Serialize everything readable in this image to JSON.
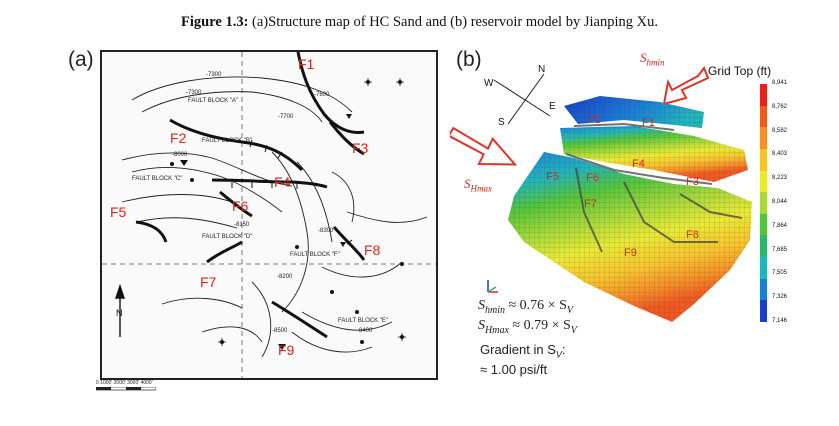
{
  "caption": {
    "bold": "Figure 1.3:",
    "text": " (a)Structure map of HC Sand and (b) reservoir model by Jianping Xu."
  },
  "panel_a": {
    "label": "(a)",
    "faults": [
      "F1",
      "F2",
      "F3",
      "F4",
      "F5",
      "F6",
      "F7",
      "F8",
      "F9"
    ],
    "contours": [
      "-7300",
      "-7300",
      "-7600",
      "-7700",
      "-7900",
      "-8000",
      "-8100",
      "-8150",
      "-8200",
      "-8300",
      "-8400",
      "-8500"
    ],
    "blocks": [
      "FAULT BLOCK \"A\"",
      "FAULT BLOCK \"B\"",
      "FAULT BLOCK \"C\"",
      "FAULT BLOCK \"D\"",
      "FAULT BLOCK \"E\"",
      "FAULT BLOCK \"F\""
    ],
    "north_label": "N",
    "scale_text": "0   1000' 2000' 3000' 4000'"
  },
  "panel_b": {
    "label": "(b)",
    "legend_title": "Grid Top (ft)",
    "legend_ticks": [
      "8,941",
      "8,762",
      "8,582",
      "8,403",
      "8,223",
      "8,044",
      "7,864",
      "7,685",
      "7,505",
      "7,326",
      "7,146"
    ],
    "compass": {
      "n": "N",
      "w": "W",
      "s": "S",
      "e": "E"
    },
    "shmin_label": "S",
    "shmin_sub": "hmin",
    "shmax_label": "S",
    "shmax_sub": "Hmax",
    "faults": [
      "F1",
      "F2",
      "F3",
      "F4",
      "F5",
      "F6",
      "F7",
      "F8",
      "F9"
    ],
    "formula_1": "≈ 0.76 × S",
    "formula_1_sub": "V",
    "formula_2": "≈ 0.79 × S",
    "formula_2_sub": "V",
    "gradient_line1": "Gradient in S",
    "gradient_line1_sub": "V",
    "gradient_line1_end": ":",
    "gradient_line2": "≈ 1.00 psi/ft",
    "legend_colors": [
      "#e8211a",
      "#ee5a22",
      "#f48f2a",
      "#f6c32e",
      "#e9e936",
      "#a9d83a",
      "#55c43b",
      "#2db56b",
      "#23b3ba",
      "#1c7fd6",
      "#1a3ec6"
    ]
  }
}
